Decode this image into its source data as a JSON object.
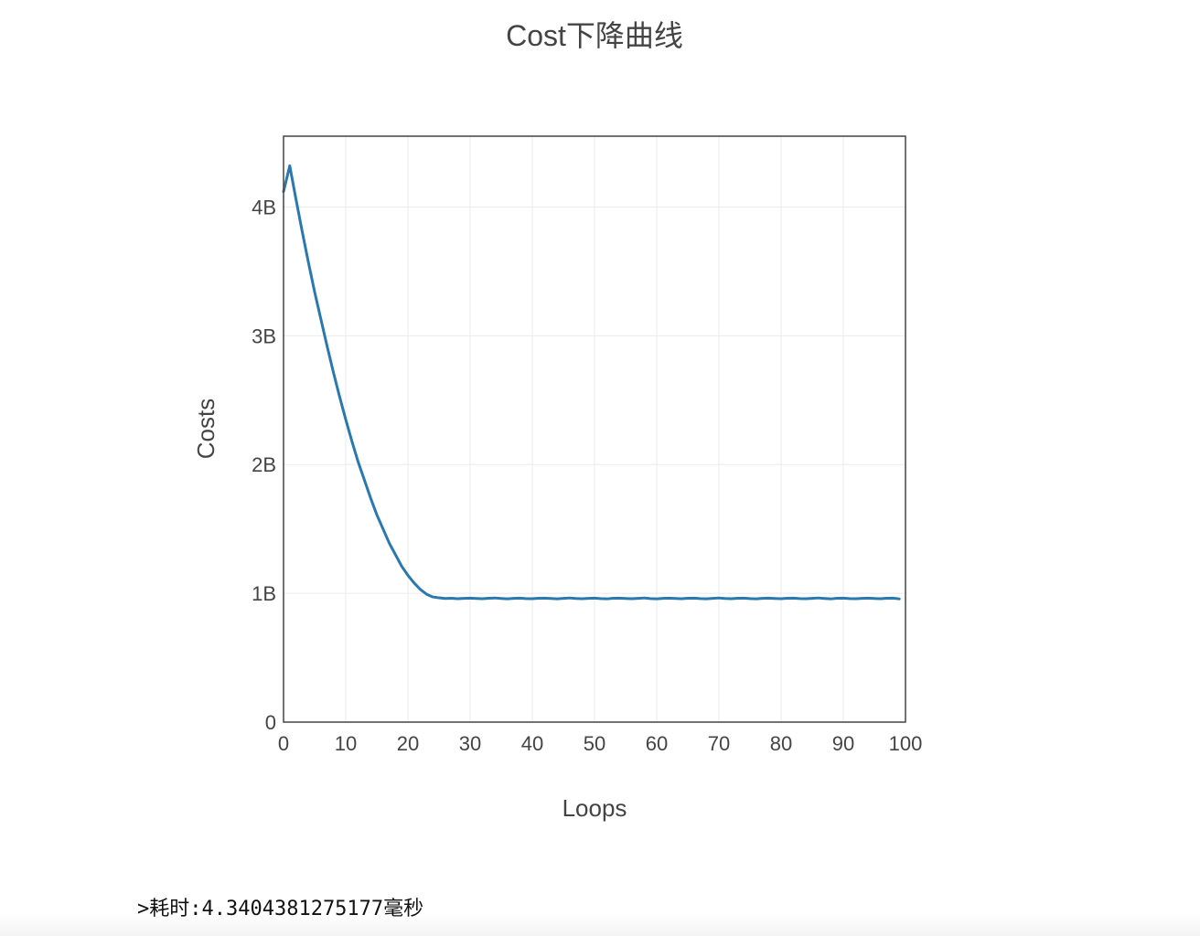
{
  "chart_data": {
    "type": "line",
    "title": "Cost下降曲线",
    "xlabel": "Loops",
    "ylabel": "Costs",
    "xlim": [
      0,
      100
    ],
    "ylim": [
      0,
      4550000000
    ],
    "x_ticks": [
      0,
      10,
      20,
      30,
      40,
      50,
      60,
      70,
      80,
      90,
      100
    ],
    "x_tick_labels": [
      "0",
      "10",
      "20",
      "30",
      "40",
      "50",
      "60",
      "70",
      "80",
      "90",
      "100"
    ],
    "y_ticks": [
      0,
      1000000000,
      2000000000,
      3000000000,
      4000000000
    ],
    "y_tick_labels": [
      "0",
      "1B",
      "2B",
      "3B",
      "4B"
    ],
    "grid": true,
    "line_color": "#2a78b0",
    "series": [
      {
        "x": [
          0,
          1,
          2,
          3,
          4,
          5,
          6,
          7,
          8,
          9,
          10,
          11,
          12,
          13,
          14,
          15,
          16,
          17,
          18,
          19,
          20,
          21,
          22,
          23,
          24,
          25,
          26,
          27,
          28,
          29,
          30,
          31,
          32,
          33,
          34,
          35,
          36,
          37,
          38,
          39,
          40,
          41,
          42,
          43,
          44,
          45,
          46,
          47,
          48,
          49,
          50,
          51,
          52,
          53,
          54,
          55,
          56,
          57,
          58,
          59,
          60,
          61,
          62,
          63,
          64,
          65,
          66,
          67,
          68,
          69,
          70,
          71,
          72,
          73,
          74,
          75,
          76,
          77,
          78,
          79,
          80,
          81,
          82,
          83,
          84,
          85,
          86,
          87,
          88,
          89,
          90,
          91,
          92,
          93,
          94,
          95,
          96,
          97,
          98,
          99
        ],
        "values": [
          4120000000,
          4320000000,
          4060000000,
          3810000000,
          3570000000,
          3340000000,
          3130000000,
          2920000000,
          2720000000,
          2530000000,
          2350000000,
          2180000000,
          2020000000,
          1880000000,
          1740000000,
          1610000000,
          1500000000,
          1390000000,
          1300000000,
          1210000000,
          1140000000,
          1080000000,
          1030000000,
          993000000,
          972000000,
          965000000,
          960000000,
          962000000,
          958000000,
          961000000,
          963000000,
          960000000,
          958000000,
          962000000,
          964000000,
          960000000,
          957000000,
          961000000,
          963000000,
          959000000,
          958000000,
          962000000,
          963000000,
          960000000,
          957000000,
          961000000,
          964000000,
          960000000,
          958000000,
          961000000,
          963000000,
          959000000,
          957000000,
          962000000,
          963000000,
          960000000,
          958000000,
          961000000,
          964000000,
          959000000,
          957000000,
          961000000,
          963000000,
          960000000,
          958000000,
          962000000,
          963000000,
          959000000,
          957000000,
          961000000,
          964000000,
          960000000,
          958000000,
          962000000,
          963000000,
          959000000,
          957000000,
          961000000,
          963000000,
          960000000,
          958000000,
          962000000,
          963000000,
          959000000,
          958000000,
          961000000,
          964000000,
          960000000,
          957000000,
          962000000,
          963000000,
          959000000,
          958000000,
          961000000,
          963000000,
          960000000,
          958000000,
          962000000,
          963000000,
          957000000
        ]
      }
    ]
  },
  "footer": {
    "elapsed_text": ">耗时:4.3404381275177毫秒"
  }
}
